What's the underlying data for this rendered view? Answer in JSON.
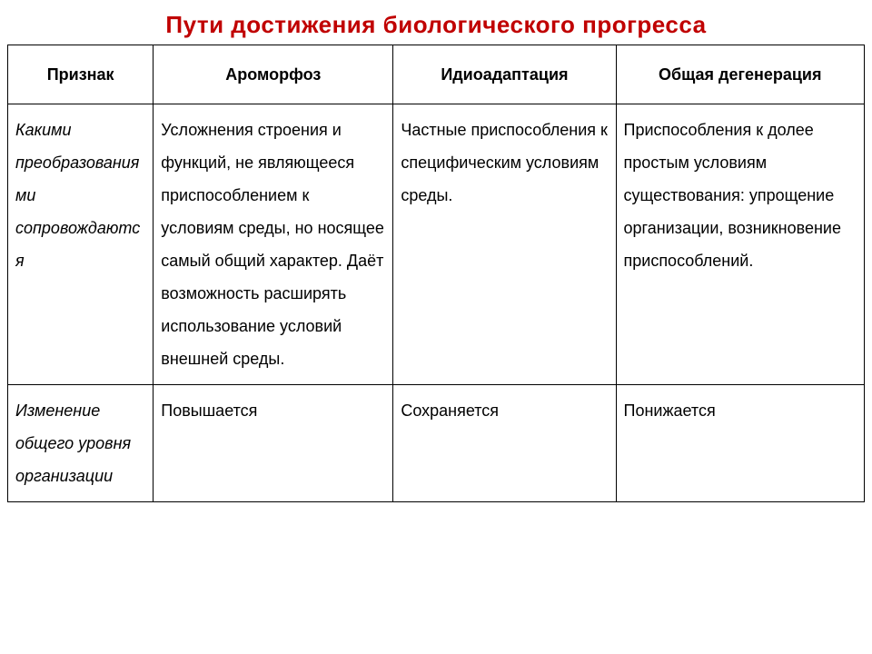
{
  "title": "Пути достижения биологического прогресса",
  "headers": {
    "col0": "Признак",
    "col1": "Ароморфоз",
    "col2": "Идиоадаптация",
    "col3": "Общая дегенерация"
  },
  "rows": [
    {
      "label": "Какими преобразованиями сопровождаются",
      "aromorphoz": "Усложнения строения и функций, не являющееся приспособлением к условиям среды, но носящее самый общий характер. Даёт возможность расширять использование условий внешней среды.",
      "idioadaptacia": "Частные приспособления к специфическим условиям среды.",
      "degeneracia": "Приспособления к долее простым условиям существования: упрощение организации, возникновение приспособлений."
    },
    {
      "label": "Изменение общего уровня организации",
      "aromorphoz": "Повышается",
      "idioadaptacia": "Сохраняется",
      "degeneracia": "Понижается"
    }
  ],
  "style": {
    "title_color": "#c00000",
    "border_color": "#000000",
    "background_color": "#ffffff",
    "title_fontsize": 26,
    "header_fontsize": 18,
    "cell_fontsize": 18,
    "line_height": 2.0
  }
}
